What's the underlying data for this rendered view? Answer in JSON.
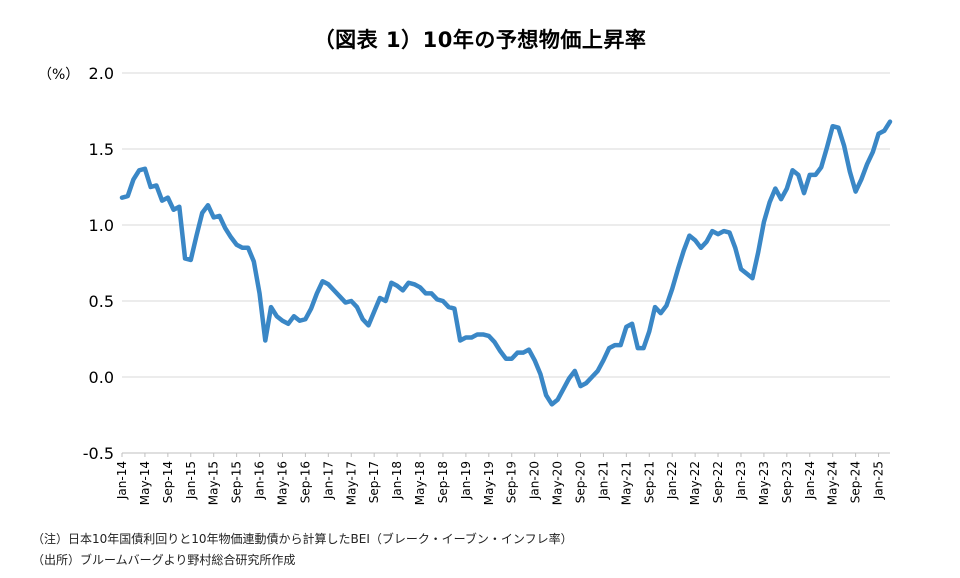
{
  "chart_data": {
    "type": "line",
    "title": "（図表 1）10年の予想物価上昇率",
    "ylabel": "（%）",
    "xlabel": "",
    "ylim": [
      -0.5,
      2.0
    ],
    "yticks": [
      "2.0",
      "1.5",
      "1.0",
      "0.5",
      "0.0",
      "-0.5"
    ],
    "ytick_values": [
      2.0,
      1.5,
      1.0,
      0.5,
      0.0,
      -0.5
    ],
    "grid": true,
    "x_tick_labels": [
      "Jan-14",
      "May-14",
      "Sep-14",
      "Jan-15",
      "May-15",
      "Sep-15",
      "Jan-16",
      "May-16",
      "Sep-16",
      "Jan-17",
      "May-17",
      "Sep-17",
      "Jan-18",
      "May-18",
      "Sep-18",
      "Jan-19",
      "May-19",
      "Sep-19",
      "Jan-20",
      "May-20",
      "Sep-20",
      "Jan-21",
      "May-21",
      "Sep-21",
      "Jan-22",
      "May-22",
      "Sep-22",
      "Jan-23",
      "May-23",
      "Sep-23",
      "Jan-24",
      "May-24",
      "Sep-24",
      "Jan-25"
    ],
    "series": [
      {
        "name": "BEI",
        "color": "#3a87c6",
        "start": "Jan-14",
        "values": [
          1.18,
          1.19,
          1.3,
          1.36,
          1.37,
          1.25,
          1.26,
          1.16,
          1.18,
          1.1,
          1.12,
          0.78,
          0.77,
          0.93,
          1.08,
          1.13,
          1.05,
          1.06,
          0.98,
          0.92,
          0.87,
          0.85,
          0.85,
          0.76,
          0.55,
          0.24,
          0.46,
          0.4,
          0.37,
          0.35,
          0.4,
          0.37,
          0.38,
          0.45,
          0.55,
          0.63,
          0.61,
          0.57,
          0.53,
          0.49,
          0.5,
          0.46,
          0.38,
          0.34,
          0.43,
          0.52,
          0.5,
          0.62,
          0.6,
          0.57,
          0.62,
          0.61,
          0.59,
          0.55,
          0.55,
          0.51,
          0.5,
          0.46,
          0.45,
          0.24,
          0.26,
          0.26,
          0.28,
          0.28,
          0.27,
          0.23,
          0.17,
          0.12,
          0.12,
          0.16,
          0.16,
          0.18,
          0.11,
          0.02,
          -0.12,
          -0.18,
          -0.15,
          -0.08,
          -0.01,
          0.04,
          -0.06,
          -0.04,
          0.0,
          0.04,
          0.11,
          0.19,
          0.21,
          0.21,
          0.33,
          0.35,
          0.19,
          0.19,
          0.3,
          0.46,
          0.42,
          0.47,
          0.58,
          0.71,
          0.83,
          0.93,
          0.9,
          0.85,
          0.89,
          0.96,
          0.94,
          0.96,
          0.95,
          0.85,
          0.71,
          0.68,
          0.65,
          0.82,
          1.02,
          1.15,
          1.24,
          1.17,
          1.24,
          1.36,
          1.33,
          1.21,
          1.33,
          1.33,
          1.38,
          1.51,
          1.65,
          1.64,
          1.52,
          1.35,
          1.22,
          1.3,
          1.4,
          1.48,
          1.6,
          1.62,
          1.68
        ]
      }
    ]
  },
  "notes": {
    "note": "（注）日本10年国債利回りと10年物価連動債から計算したBEI（ブレーク・イーブン・インフレ率）",
    "source": "（出所）ブルームバーグより野村総合研究所作成"
  }
}
